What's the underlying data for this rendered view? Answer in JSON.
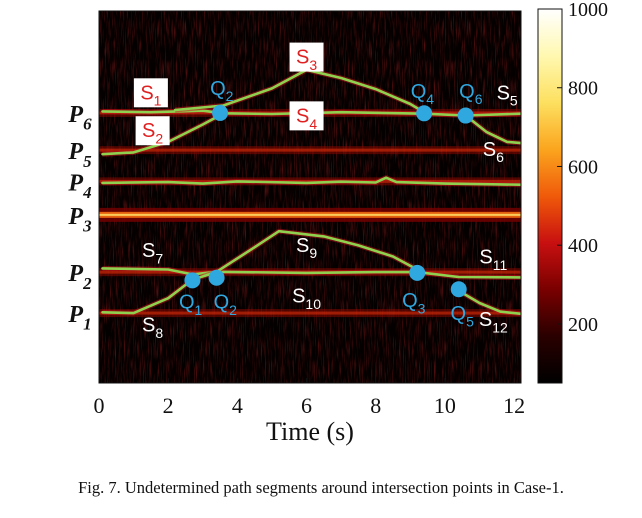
{
  "chart_data": {
    "type": "heatmap",
    "title": "",
    "xlabel": "Time (s)",
    "x_range": [
      0,
      12.2
    ],
    "x_ticks": [
      "0",
      "2",
      "4",
      "6",
      "8",
      "10",
      "12"
    ],
    "x_tick_values": [
      0,
      2,
      4,
      6,
      8,
      10,
      12
    ],
    "y_range": [
      0,
      100
    ],
    "colorbar": {
      "ticks": [
        "200",
        "400",
        "600",
        "800",
        "1000"
      ],
      "tick_values": [
        200,
        400,
        600,
        800,
        1000
      ],
      "range": [
        50,
        1000
      ],
      "colors": [
        "#000000",
        "#2a0000",
        "#7a0000",
        "#c81010",
        "#f05a0a",
        "#fba51e",
        "#fde060",
        "#fff8b0",
        "#ffffff"
      ]
    },
    "path_labels": [
      {
        "main": "P",
        "sub": "6",
        "y": 72.6
      },
      {
        "main": "P",
        "sub": "5",
        "y": 62.6
      },
      {
        "main": "P",
        "sub": "4",
        "y": 54.2
      },
      {
        "main": "P",
        "sub": "3",
        "y": 45.2
      },
      {
        "main": "P",
        "sub": "2",
        "y": 29.8
      },
      {
        "main": "P",
        "sub": "1",
        "y": 18.8
      }
    ],
    "series": [
      {
        "name": "P6 path",
        "x": [
          0.1,
          1.5,
          3.0,
          3.6,
          5.0,
          7.0,
          9.4,
          10.6,
          12.2
        ],
        "y": [
          73.0,
          72.8,
          73.2,
          72.5,
          72.3,
          72.8,
          72.4,
          71.9,
          72.4
        ]
      },
      {
        "name": "S3 arc",
        "x": [
          2.2,
          3.6,
          5.0,
          6.0,
          7.0,
          8.0,
          9.0,
          9.4
        ],
        "y": [
          73.4,
          74.6,
          79.2,
          84.2,
          82.0,
          79.0,
          75.0,
          72.8
        ]
      },
      {
        "name": "P5 path",
        "x": [
          0.1,
          1.0,
          2.0,
          3.0,
          3.6
        ],
        "y": [
          61.5,
          62.0,
          64.8,
          69.5,
          72.5
        ]
      },
      {
        "name": "S6 branch",
        "x": [
          10.6,
          11.2,
          11.8,
          12.2
        ],
        "y": [
          71.9,
          67.5,
          64.8,
          64.5
        ]
      },
      {
        "name": "P4 path",
        "x": [
          0.1,
          2.0,
          3.0,
          4.0,
          6.0,
          7.0,
          8.0,
          8.3,
          8.6,
          10.0,
          12.2
        ],
        "y": [
          53.8,
          54.0,
          53.6,
          54.2,
          53.8,
          54.1,
          53.9,
          55.2,
          54.0,
          53.6,
          53.3
        ]
      },
      {
        "name": "P2 path",
        "x": [
          0.1,
          2.0,
          2.7,
          3.4,
          6.0,
          8.0,
          9.2,
          10.4,
          12.2
        ],
        "y": [
          30.8,
          30.5,
          29.2,
          29.9,
          29.6,
          29.8,
          29.8,
          28.5,
          28.4
        ]
      },
      {
        "name": "S9 arc",
        "x": [
          3.4,
          4.5,
          5.2,
          6.5,
          7.5,
          8.5,
          9.2
        ],
        "y": [
          29.9,
          36.5,
          40.8,
          39.4,
          37.0,
          34.0,
          30.5
        ]
      },
      {
        "name": "P1 path",
        "x": [
          0.1,
          1.0,
          2.0,
          2.7,
          3.4
        ],
        "y": [
          19.0,
          18.8,
          22.8,
          27.8,
          29.8
        ]
      },
      {
        "name": "S12 branch",
        "x": [
          10.4,
          11.0,
          11.6,
          12.2
        ],
        "y": [
          24.8,
          21.5,
          19.2,
          18.6
        ]
      }
    ],
    "intersection_points": [
      {
        "label": "Q",
        "sub": "2",
        "x": 3.5,
        "y": 72.6,
        "lx": 3.55,
        "ly": 78.0
      },
      {
        "label": "Q",
        "sub": "4",
        "x": 9.4,
        "y": 72.5,
        "lx": 9.35,
        "ly": 77.2
      },
      {
        "label": "Q",
        "sub": "6",
        "x": 10.6,
        "y": 71.9,
        "lx": 10.75,
        "ly": 77.2
      },
      {
        "label": "Q",
        "sub": "1",
        "x": 2.7,
        "y": 27.6,
        "lx": 2.65,
        "ly": 20.5
      },
      {
        "label": "Q",
        "sub": "2",
        "x": 3.4,
        "y": 28.3,
        "lx": 3.65,
        "ly": 20.5
      },
      {
        "label": "Q",
        "sub": "3",
        "x": 9.2,
        "y": 29.6,
        "lx": 9.1,
        "ly": 21.0
      },
      {
        "label": "Q",
        "sub": "5",
        "x": 10.4,
        "y": 25.2,
        "lx": 10.5,
        "ly": 17.5
      }
    ],
    "segment_labels": [
      {
        "main": "S",
        "sub": "1",
        "x": 1.5,
        "y": 76.8,
        "boxed": true
      },
      {
        "main": "S",
        "sub": "2",
        "x": 1.55,
        "y": 66.6,
        "boxed": true
      },
      {
        "main": "S",
        "sub": "3",
        "x": 6.0,
        "y": 86.4,
        "boxed": true
      },
      {
        "main": "S",
        "sub": "4",
        "x": 6.0,
        "y": 70.6,
        "boxed": true
      },
      {
        "main": "S",
        "sub": "5",
        "x": 11.8,
        "y": 76.8,
        "boxed": false
      },
      {
        "main": "S",
        "sub": "6",
        "x": 11.4,
        "y": 61.6,
        "boxed": false
      },
      {
        "main": "S",
        "sub": "7",
        "x": 1.55,
        "y": 34.4,
        "boxed": false
      },
      {
        "main": "S",
        "sub": "8",
        "x": 1.55,
        "y": 14.4,
        "boxed": false
      },
      {
        "main": "S",
        "sub": "9",
        "x": 6.0,
        "y": 35.8,
        "boxed": false
      },
      {
        "main": "S",
        "sub": "10",
        "x": 6.0,
        "y": 22.2,
        "boxed": false
      },
      {
        "main": "S",
        "sub": "11",
        "x": 11.4,
        "y": 32.6,
        "boxed": false
      },
      {
        "main": "S",
        "sub": "12",
        "x": 11.4,
        "y": 15.8,
        "boxed": false
      }
    ]
  },
  "caption": "Fig. 7.  Undetermined path segments around intersection points in Case-1."
}
